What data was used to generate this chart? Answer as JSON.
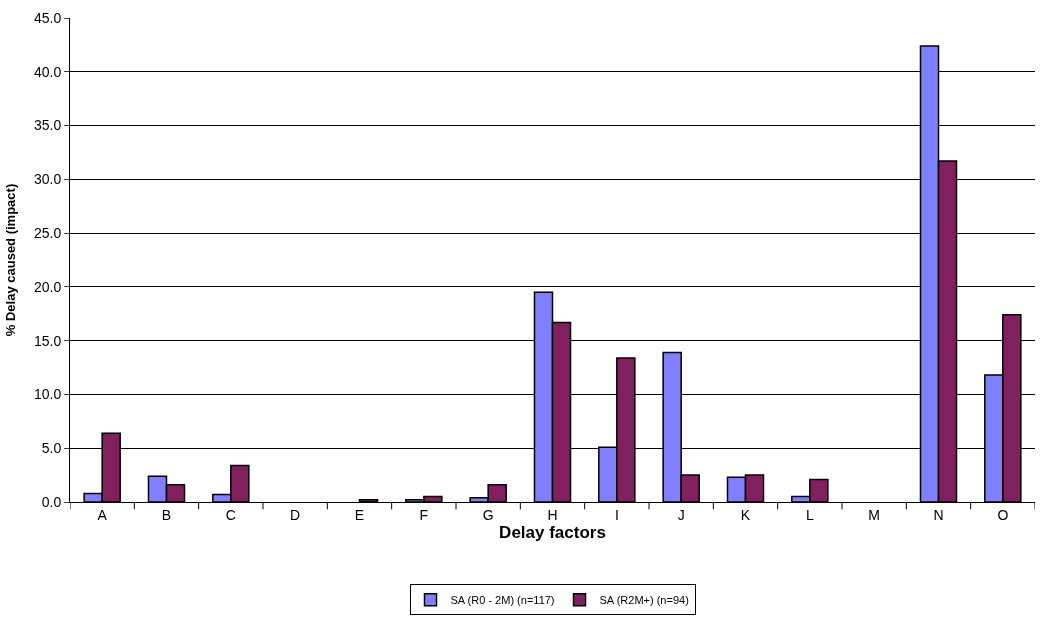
{
  "chart_data": {
    "type": "bar",
    "xlabel": "Delay factors",
    "ylabel": "% Delay caused (impact)",
    "categories": [
      "A",
      "B",
      "C",
      "D",
      "E",
      "F",
      "G",
      "H",
      "I",
      "J",
      "K",
      "L",
      "M",
      "N",
      "O"
    ],
    "series": [
      {
        "name": "SA (R0 - 2M) (n=117)",
        "color": "#8080ff",
        "values": [
          0.8,
          2.4,
          0.7,
          0,
          0,
          0.2,
          0.4,
          19.5,
          5.1,
          13.9,
          2.3,
          0.5,
          0,
          42.4,
          11.8
        ]
      },
      {
        "name": "SA (R2M+) (n=94)",
        "color": "#80205f",
        "values": [
          6.4,
          1.6,
          3.4,
          0,
          0.2,
          0.5,
          1.6,
          16.7,
          13.4,
          2.5,
          2.5,
          2.1,
          0,
          31.7,
          17.4
        ]
      }
    ],
    "ylim": [
      0,
      45
    ],
    "yticks": [
      {
        "value": 0,
        "label": "0.0"
      },
      {
        "value": 5,
        "label": "5.0"
      },
      {
        "value": 10,
        "label": "10.0"
      },
      {
        "value": 15,
        "label": "15.0"
      },
      {
        "value": 20,
        "label": "20.0"
      },
      {
        "value": 25,
        "label": "25.0"
      },
      {
        "value": 30,
        "label": "30.0"
      },
      {
        "value": 35,
        "label": "35.0"
      },
      {
        "value": 40,
        "label": "40.0"
      },
      {
        "value": 45,
        "label": "45.0"
      }
    ],
    "grid": "y",
    "legend": "bottom"
  }
}
